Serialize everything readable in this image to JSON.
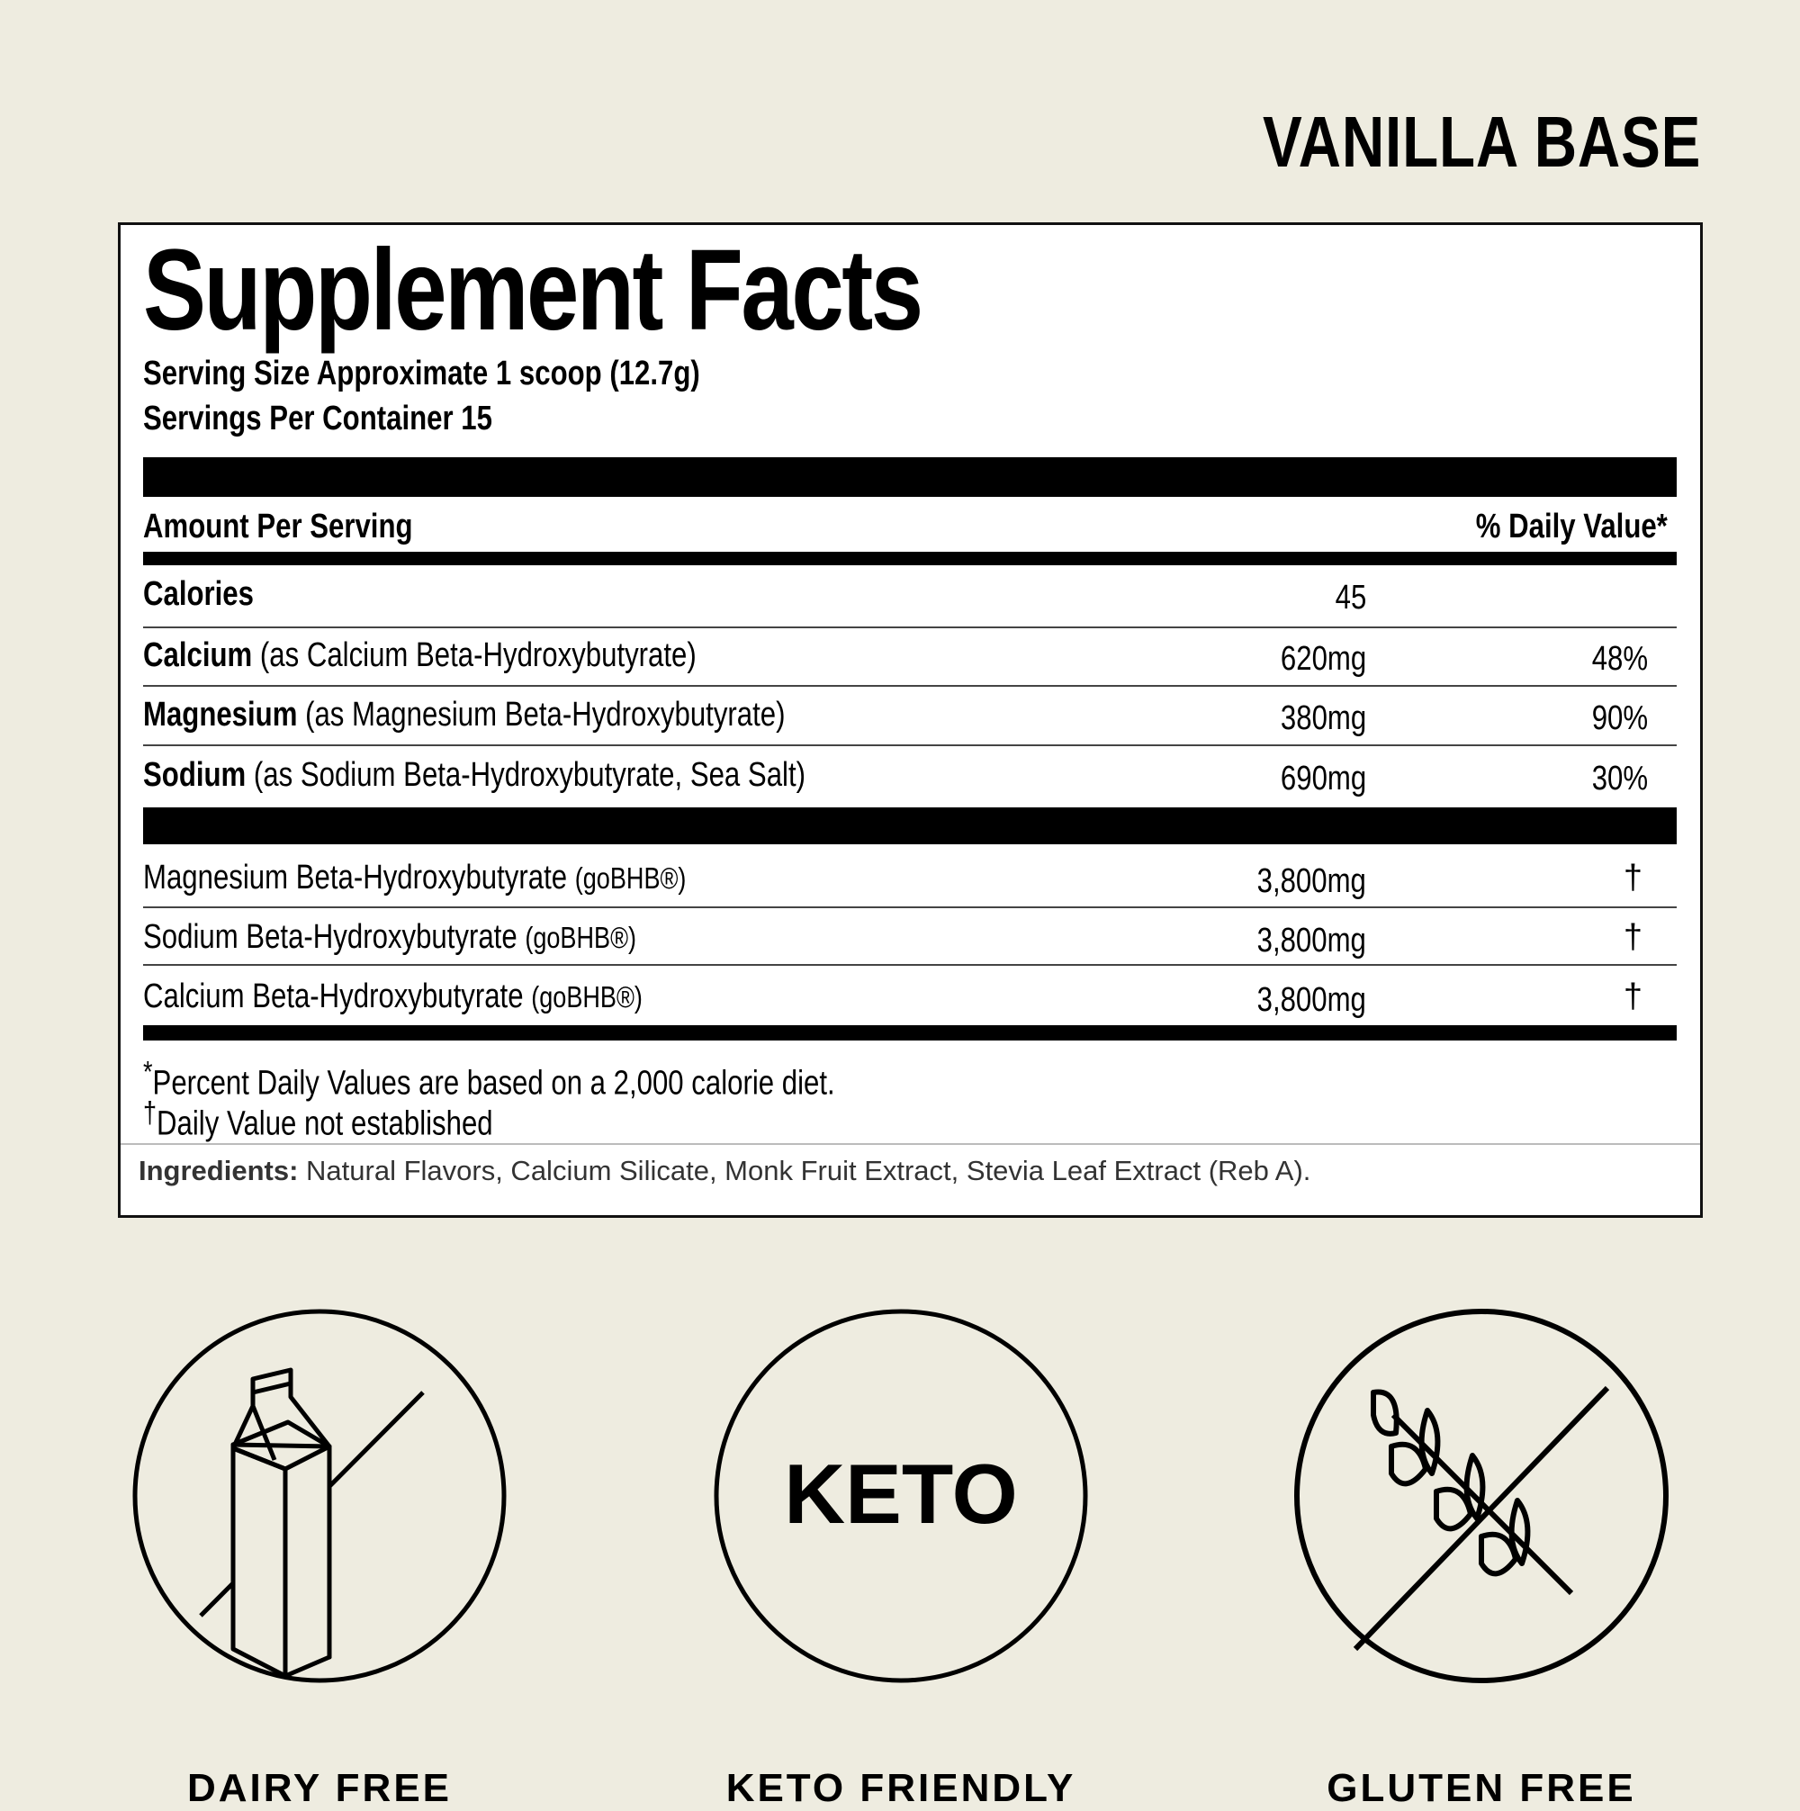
{
  "variant": "VANILLA BASE",
  "facts": {
    "title": "Supplement Facts",
    "serving_size": "Serving Size Approximate 1 scoop (12.7g)",
    "servings_per_container": "Servings Per Container 15",
    "amount_header": "Amount Per Serving",
    "dv_header": "% Daily Value*",
    "calories": {
      "label": "Calories",
      "amount": "45"
    },
    "nutrients": [
      {
        "name": "Calcium",
        "detail": "(as Calcium Beta-Hydroxybutyrate)",
        "amount": "620mg",
        "dv": "48%"
      },
      {
        "name": "Magnesium",
        "detail": "(as Magnesium Beta-Hydroxybutyrate)",
        "amount": "380mg",
        "dv": "90%"
      },
      {
        "name": "Sodium",
        "detail": "(as Sodium Beta-Hydroxybutyrate, Sea Salt)",
        "amount": "690mg",
        "dv": "30%"
      }
    ],
    "blend": [
      {
        "name": "Magnesium Beta-Hydroxybutyrate",
        "brand": "(goBHB®)",
        "amount": "3,800mg",
        "dv": "†"
      },
      {
        "name": "Sodium Beta-Hydroxybutyrate",
        "brand": "(goBHB®)",
        "amount": "3,800mg",
        "dv": "†"
      },
      {
        "name": "Calcium Beta-Hydroxybutyrate",
        "brand": "(goBHB®)",
        "amount": "3,800mg",
        "dv": "†"
      }
    ],
    "footnote_1_mark": "*",
    "footnote_1": "Percent Daily Values are based on a 2,000 calorie diet.",
    "footnote_2_mark": "†",
    "footnote_2": "Daily Value not established",
    "ingredients_label": "Ingredients:",
    "ingredients": "Natural Flavors, Calcium Silicate, Monk Fruit Extract, Stevia Leaf Extract (Reb A)."
  },
  "badges": [
    {
      "icon": "milk-carton-crossed-icon",
      "label": "DAIRY FREE"
    },
    {
      "icon": "keto-icon",
      "text": "KETO",
      "label": "KETO FRIENDLY"
    },
    {
      "icon": "wheat-crossed-icon",
      "label": "GLUTEN FREE"
    }
  ]
}
